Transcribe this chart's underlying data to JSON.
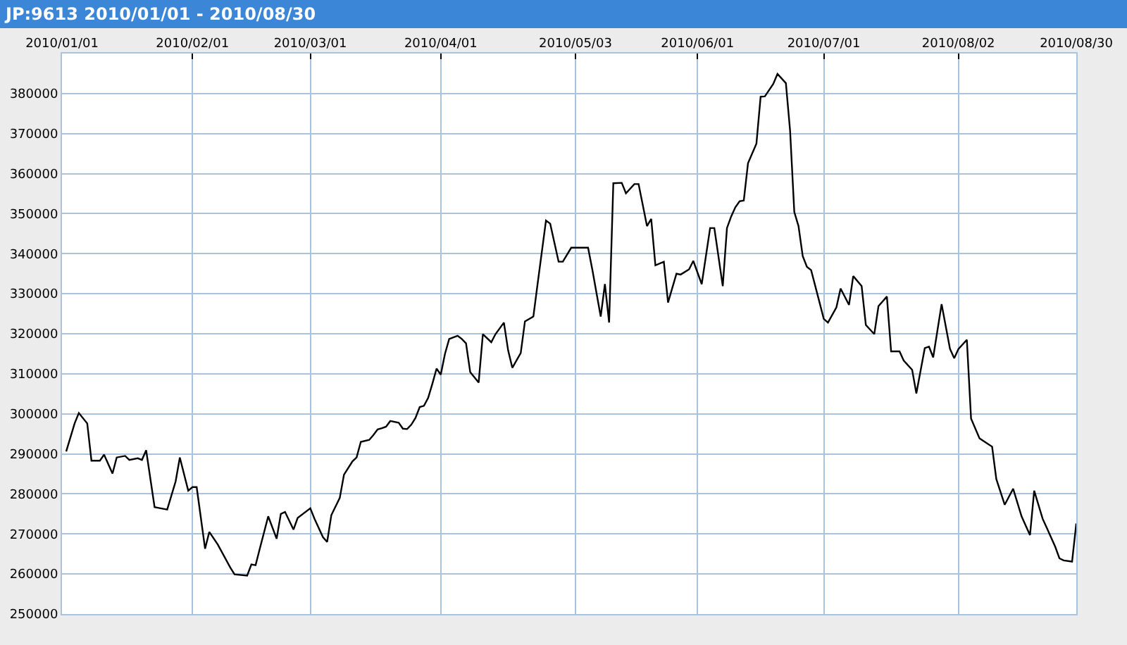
{
  "chart_data": {
    "type": "line",
    "title": "JP:9613 2010/01/01 - 2010/08/30",
    "x": [
      "2010-01-02",
      "2010-01-04",
      "2010-01-05",
      "2010-01-07",
      "2010-01-08",
      "2010-01-10",
      "2010-01-11",
      "2010-01-13",
      "2010-01-14",
      "2010-01-16",
      "2010-01-17",
      "2010-01-19",
      "2010-01-20",
      "2010-01-21",
      "2010-01-23",
      "2010-01-24",
      "2010-01-26",
      "2010-01-28",
      "2010-01-29",
      "2010-01-31",
      "2010-02-01",
      "2010-02-02",
      "2010-02-04",
      "2010-02-05",
      "2010-02-07",
      "2010-02-10",
      "2010-02-11",
      "2010-02-14",
      "2010-02-15",
      "2010-02-16",
      "2010-02-17",
      "2010-02-19",
      "2010-02-21",
      "2010-02-22",
      "2010-02-23",
      "2010-02-25",
      "2010-02-26",
      "2010-03-01",
      "2010-03-02",
      "2010-03-04",
      "2010-03-05",
      "2010-03-06",
      "2010-03-08",
      "2010-03-09",
      "2010-03-11",
      "2010-03-12",
      "2010-03-13",
      "2010-03-15",
      "2010-03-16",
      "2010-03-17",
      "2010-03-18",
      "2010-03-19",
      "2010-03-20",
      "2010-03-22",
      "2010-03-23",
      "2010-03-24",
      "2010-03-25",
      "2010-03-26",
      "2010-03-27",
      "2010-03-28",
      "2010-03-29",
      "2010-03-30",
      "2010-03-31",
      "2010-04-01",
      "2010-04-02",
      "2010-04-03",
      "2010-04-05",
      "2010-04-06",
      "2010-04-07",
      "2010-04-08",
      "2010-04-10",
      "2010-04-11",
      "2010-04-13",
      "2010-04-14",
      "2010-04-16",
      "2010-04-17",
      "2010-04-18",
      "2010-04-20",
      "2010-04-21",
      "2010-04-23",
      "2010-04-24",
      "2010-04-26",
      "2010-04-27",
      "2010-04-29",
      "2010-04-30",
      "2010-05-02",
      "2010-05-04",
      "2010-05-06",
      "2010-05-07",
      "2010-05-09",
      "2010-05-10",
      "2010-05-11",
      "2010-05-12",
      "2010-05-14",
      "2010-05-15",
      "2010-05-17",
      "2010-05-18",
      "2010-05-20",
      "2010-05-21",
      "2010-05-22",
      "2010-05-24",
      "2010-05-25",
      "2010-05-27",
      "2010-05-28",
      "2010-05-30",
      "2010-05-31",
      "2010-06-02",
      "2010-06-04",
      "2010-06-05",
      "2010-06-07",
      "2010-06-08",
      "2010-06-09",
      "2010-06-10",
      "2010-06-11",
      "2010-06-12",
      "2010-06-13",
      "2010-06-15",
      "2010-06-16",
      "2010-06-17",
      "2010-06-19",
      "2010-06-20",
      "2010-06-22",
      "2010-06-23",
      "2010-06-24",
      "2010-06-25",
      "2010-06-26",
      "2010-06-27",
      "2010-06-28",
      "2010-06-30",
      "2010-07-01",
      "2010-07-02",
      "2010-07-04",
      "2010-07-05",
      "2010-07-07",
      "2010-07-08",
      "2010-07-10",
      "2010-07-11",
      "2010-07-13",
      "2010-07-14",
      "2010-07-16",
      "2010-07-17",
      "2010-07-19",
      "2010-07-20",
      "2010-07-22",
      "2010-07-23",
      "2010-07-25",
      "2010-07-26",
      "2010-07-27",
      "2010-07-29",
      "2010-07-31",
      "2010-08-01",
      "2010-08-02",
      "2010-08-04",
      "2010-08-05",
      "2010-08-07",
      "2010-08-08",
      "2010-08-10",
      "2010-08-11",
      "2010-08-13",
      "2010-08-15",
      "2010-08-17",
      "2010-08-19",
      "2010-08-20",
      "2010-08-22",
      "2010-08-23",
      "2010-08-25",
      "2010-08-26",
      "2010-08-27",
      "2010-08-29",
      "2010-08-30"
    ],
    "series": [
      {
        "color": "#000000",
        "values": [
          290600,
          297600,
          300200,
          297600,
          288300,
          288300,
          289800,
          285100,
          289100,
          289500,
          288500,
          288900,
          288500,
          290900,
          276700,
          276500,
          276100,
          283100,
          289100,
          280800,
          281700,
          281700,
          266300,
          270500,
          267400,
          261600,
          259900,
          259600,
          262400,
          262200,
          266300,
          274400,
          268800,
          275000,
          275500,
          271100,
          274000,
          276400,
          273800,
          269200,
          268000,
          274700,
          279000,
          284800,
          288100,
          289100,
          293000,
          293500,
          294700,
          296100,
          296400,
          296800,
          298200,
          297800,
          296300,
          296200,
          297300,
          299000,
          301700,
          302000,
          304000,
          307500,
          311300,
          309800,
          315000,
          318700,
          319500,
          318700,
          317600,
          310400,
          307800,
          319900,
          317900,
          319900,
          322800,
          315900,
          311500,
          315200,
          323100,
          324300,
          332400,
          348300,
          347500,
          338000,
          338000,
          341500,
          341500,
          341500,
          336100,
          324300,
          332400,
          322800,
          357600,
          357700,
          355100,
          357400,
          357400,
          346900,
          348700,
          337100,
          338000,
          327800,
          335000,
          334800,
          336100,
          338200,
          332400,
          346400,
          346400,
          331900,
          346400,
          349300,
          351600,
          353100,
          353300,
          362600,
          367500,
          379200,
          379300,
          382400,
          384900,
          382600,
          370700,
          350400,
          346900,
          339400,
          336700,
          335900,
          327800,
          323700,
          322800,
          326600,
          331300,
          327200,
          334400,
          331900,
          322200,
          319900,
          326900,
          329300,
          315600,
          315600,
          313300,
          311000,
          305100,
          316400,
          316800,
          314100,
          327400,
          316200,
          313900,
          316200,
          318500,
          298800,
          293900,
          293200,
          291800,
          283700,
          277300,
          281300,
          274400,
          269700,
          280800,
          273800,
          271500,
          266800,
          263900,
          263400,
          263100,
          272600
        ]
      }
    ],
    "xlim": [
      "2010-01-01",
      "2010-08-30"
    ],
    "xticks": [
      {
        "value": "2010-01-01",
        "label": "2010/01/01"
      },
      {
        "value": "2010-02-01",
        "label": "2010/02/01"
      },
      {
        "value": "2010-03-01",
        "label": "2010/03/01"
      },
      {
        "value": "2010-04-01",
        "label": "2010/04/01"
      },
      {
        "value": "2010-05-03",
        "label": "2010/05/03"
      },
      {
        "value": "2010-06-01",
        "label": "2010/06/01"
      },
      {
        "value": "2010-07-01",
        "label": "2010/07/01"
      },
      {
        "value": "2010-08-02",
        "label": "2010/08/02"
      },
      {
        "value": "2010-08-30",
        "label": "2010/08/30"
      }
    ],
    "ylim": [
      250000,
      390000
    ],
    "yticks": [
      250000,
      260000,
      270000,
      280000,
      290000,
      300000,
      310000,
      320000,
      330000,
      340000,
      350000,
      360000,
      370000,
      380000
    ],
    "grid": true,
    "marker": "none",
    "line_style": "solid"
  }
}
